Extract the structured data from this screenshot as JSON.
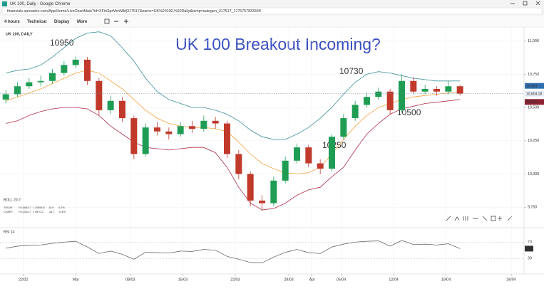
{
  "browser": {
    "window_title": "UK 100, Daily - Google Chrome",
    "url": "financials.spreadex.com/App/Home/LiveChartMain?id=XFinSprMchMkt|317517&name=UK%20100,%20Daily&temp=autogen_317517_1776757833348"
  },
  "toolbar": {
    "items": [
      "4 hours",
      "Technical",
      "Display",
      "More"
    ]
  },
  "chart_data": {
    "type": "candlestick",
    "title": "UK 100 Breakout Incoming?",
    "label": "UK 100, DAILY",
    "annotations": [
      "10950",
      "10730",
      "10500",
      "10250"
    ],
    "up_color": "#1f9d55",
    "down_color": "#c0392b",
    "grid": true,
    "xlim": [
      -0.5,
      44.5
    ],
    "xticks": [
      {
        "value": 1.5,
        "label": "22/02"
      },
      {
        "value": 6.0,
        "label": "Mar"
      },
      {
        "value": 10.7,
        "label": "08/03"
      },
      {
        "value": 15.2,
        "label": "15/03"
      },
      {
        "value": 19.7,
        "label": "22/03"
      },
      {
        "value": 24.3,
        "label": "29/03"
      },
      {
        "value": 26.3,
        "label": "Apr"
      },
      {
        "value": 28.8,
        "label": "05/04"
      },
      {
        "value": 33.3,
        "label": "12/04"
      },
      {
        "value": 37.8,
        "label": "19/04"
      },
      {
        "value": 43.4,
        "label": "26/04"
      }
    ],
    "ylim": [
      9703,
      11095
    ],
    "yticks": [
      {
        "value": 9750,
        "label": "9,750"
      },
      {
        "value": 10000,
        "label": "10,000"
      },
      {
        "value": 10250,
        "label": "10,250"
      },
      {
        "value": 10500,
        "label": "10,500"
      },
      {
        "value": 10750,
        "label": "10,750"
      },
      {
        "value": 11000,
        "label": "11,000"
      }
    ],
    "candles": {
      "open": [
        10560,
        10600,
        10660,
        10690,
        10700,
        10760,
        10820,
        10860,
        10700,
        10480,
        10550,
        10420,
        10150,
        10350,
        10320,
        10300,
        10360,
        10340,
        10400,
        10380,
        10150,
        10000,
        9800,
        9780,
        9950,
        10100,
        10200,
        10080,
        10040,
        10280,
        10420,
        10520,
        10580,
        10620,
        10480,
        10700,
        10620,
        10640,
        10620,
        10660
      ],
      "high": [
        10630,
        10690,
        10720,
        10740,
        10790,
        10850,
        10884,
        10880,
        10720,
        10590,
        10580,
        10440,
        10380,
        10390,
        10350,
        10390,
        10400,
        10440,
        10430,
        10400,
        10180,
        10020,
        9840,
        9980,
        10130,
        10230,
        10220,
        10110,
        10300,
        10450,
        10550,
        10610,
        10650,
        10640,
        10750,
        10730,
        10670,
        10660,
        10700,
        10670
      ],
      "low": [
        10530,
        10580,
        10640,
        10660,
        10680,
        10740,
        10800,
        10670,
        10440,
        10450,
        10390,
        10110,
        10130,
        10290,
        10260,
        10280,
        10310,
        10320,
        10340,
        10120,
        9960,
        9760,
        9720,
        9760,
        9930,
        10080,
        10050,
        10000,
        10020,
        10260,
        10400,
        10500,
        10560,
        10450,
        10460,
        10600,
        10600,
        10590,
        10600,
        10590
      ],
      "close": [
        10600,
        10660,
        10690,
        10700,
        10760,
        10820,
        10860,
        10700,
        10480,
        10550,
        10420,
        10150,
        10350,
        10320,
        10300,
        10360,
        10340,
        10400,
        10380,
        10150,
        10000,
        9800,
        9780,
        9950,
        10100,
        10200,
        10080,
        10040,
        10280,
        10420,
        10520,
        10580,
        10620,
        10480,
        10700,
        10620,
        10640,
        10620,
        10660,
        10605
      ]
    },
    "series": [
      {
        "color": "#3d8f9a",
        "values": [
          10760,
          10780,
          10790,
          10820,
          10880,
          10950,
          11020,
          11060,
          11070,
          11040,
          10950,
          10850,
          10720,
          10620,
          10560,
          10530,
          10500,
          10500,
          10480,
          10450,
          10400,
          10330,
          10280,
          10260,
          10260,
          10300,
          10350,
          10420,
          10500,
          10600,
          10690,
          10750,
          10770,
          10760,
          10740,
          10720,
          10710,
          10700,
          10700,
          10700
        ]
      },
      {
        "color": "#f5a341",
        "values": [
          10550,
          10580,
          10610,
          10640,
          10680,
          10720,
          10760,
          10780,
          10760,
          10700,
          10640,
          10560,
          10480,
          10420,
          10380,
          10360,
          10350,
          10350,
          10340,
          10320,
          10240,
          10150,
          10080,
          10040,
          10010,
          10000,
          10010,
          10050,
          10150,
          10260,
          10360,
          10440,
          10500,
          10530,
          10560,
          10580,
          10590,
          10600,
          10610,
          10620
        ]
      },
      {
        "color": "#b0304a",
        "values": [
          10380,
          10400,
          10440,
          10470,
          10490,
          10500,
          10500,
          10490,
          10440,
          10360,
          10300,
          10240,
          10200,
          10190,
          10180,
          10190,
          10200,
          10200,
          10160,
          10050,
          9900,
          9780,
          9730,
          9740,
          9780,
          9840,
          9880,
          9900,
          9980,
          10050,
          10180,
          10300,
          10380,
          10450,
          10490,
          10510,
          10530,
          10540,
          10550,
          10560
        ]
      }
    ],
    "price_tags": [
      {
        "value": 10663,
        "label": "10,663",
        "color": "#2f6fb0"
      },
      {
        "value": 10604.18,
        "label": "10,604.18",
        "color": "#e6edf6"
      },
      {
        "value": 10542,
        "label": "10,542",
        "color": "#8b2232"
      }
    ],
    "indicator": "BOLL 20 2",
    "stats": [
      {
        "name": "TODAY",
        "cells": [
          "H 10634.7",
          "L 10594.8",
          "18.9",
          "0.2%"
        ]
      },
      {
        "name": "CHART",
        "cells": [
          "H 11044.7",
          "L 9670.2",
          "-41.7",
          "-0.4%"
        ]
      }
    ],
    "rsi": {
      "name": "RSI 14",
      "color": "#555555",
      "ylim": [
        -3,
        88
      ],
      "yticks": [
        30,
        70
      ],
      "values": [
        55,
        60,
        62,
        63,
        67,
        70,
        72,
        58,
        42,
        48,
        40,
        28,
        45,
        44,
        43,
        48,
        47,
        52,
        50,
        35,
        28,
        20,
        19,
        33,
        45,
        52,
        44,
        42,
        58,
        65,
        70,
        72,
        73,
        60,
        74,
        64,
        65,
        63,
        66,
        54
      ]
    }
  }
}
